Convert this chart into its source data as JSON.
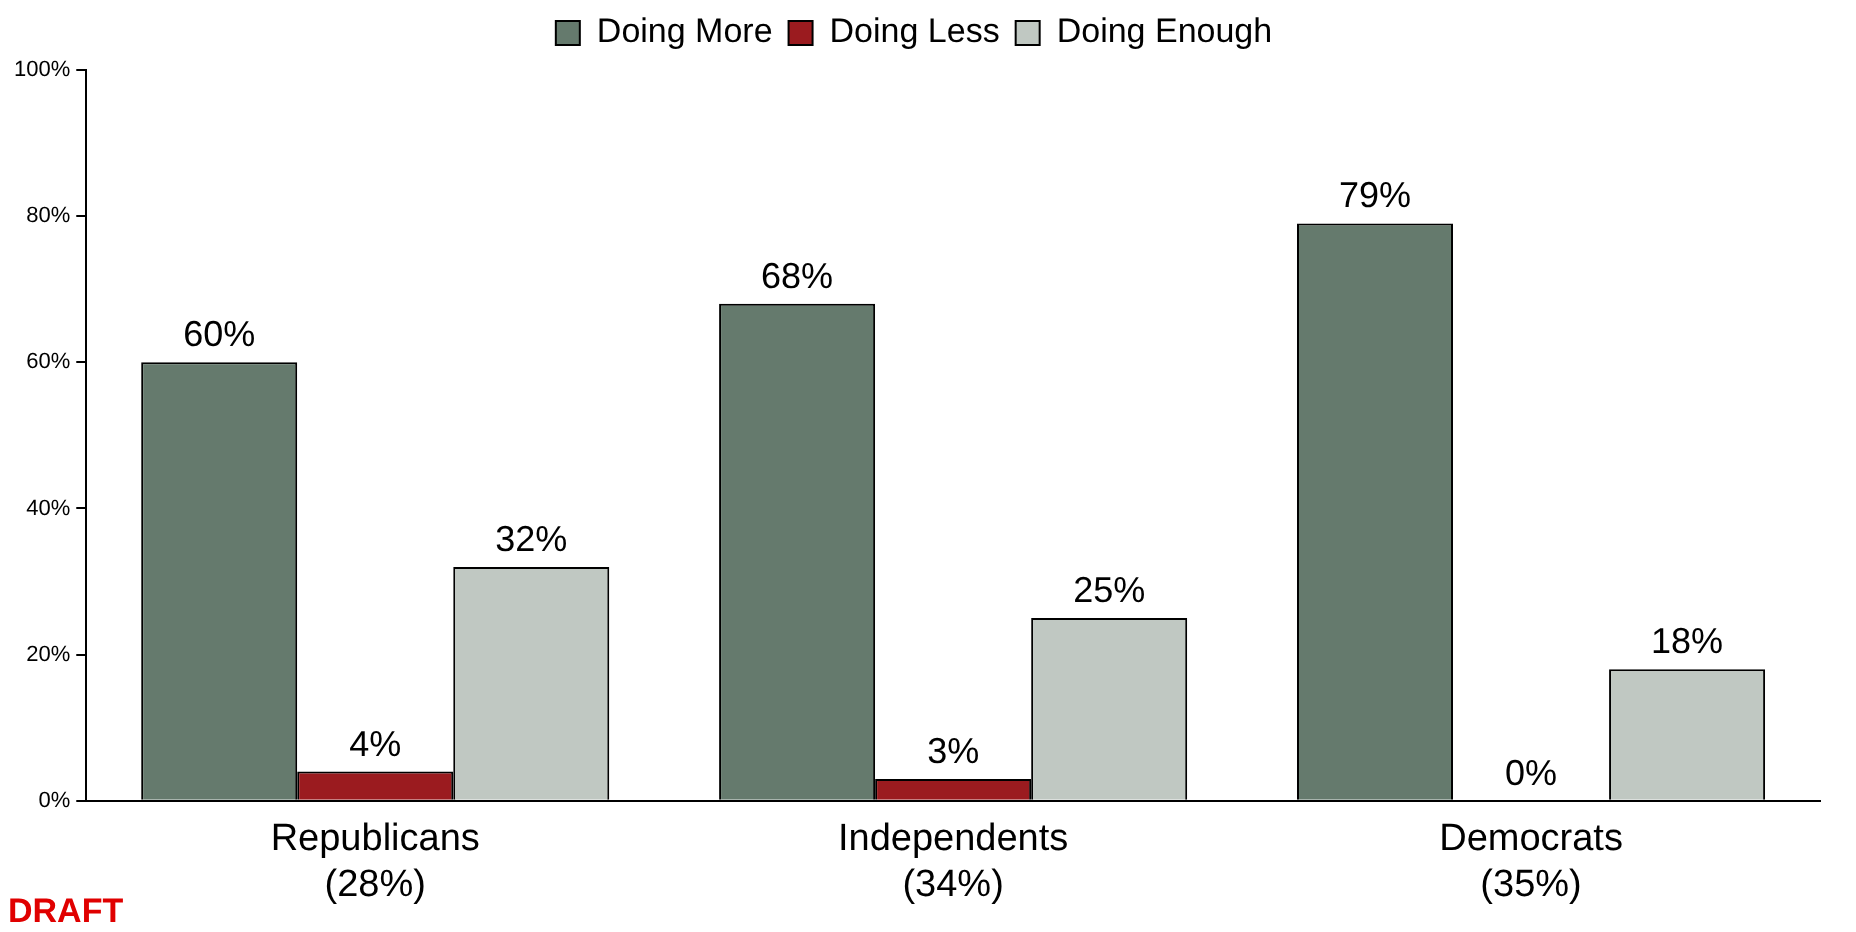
{
  "chart_data": {
    "type": "bar",
    "categories": [
      "Republicans\n(28%)",
      "Independents\n(34%)",
      "Democrats\n(35%)"
    ],
    "series": [
      {
        "name": "Doing More",
        "color": "#657a6d",
        "values": [
          60,
          68,
          79
        ],
        "value_labels": [
          "60%",
          "68%",
          "79%"
        ]
      },
      {
        "name": "Doing Less",
        "color": "#9b1b1f",
        "values": [
          4,
          3,
          0
        ],
        "value_labels": [
          "4%",
          "3%",
          "0%"
        ]
      },
      {
        "name": "Doing Enough",
        "color": "#c0c8c2",
        "values": [
          32,
          25,
          18
        ],
        "value_labels": [
          "32%",
          "25%",
          "18%"
        ]
      }
    ],
    "ylim": [
      0,
      100
    ],
    "yticks": [
      {
        "value": 0,
        "label": "0%"
      },
      {
        "value": 20,
        "label": "20%"
      },
      {
        "value": 40,
        "label": "40%"
      },
      {
        "value": 60,
        "label": "60%"
      },
      {
        "value": 80,
        "label": "80%"
      },
      {
        "value": 100,
        "label": "100%"
      }
    ],
    "grid": false,
    "legend": "top",
    "annotations": [
      "DRAFT"
    ]
  }
}
